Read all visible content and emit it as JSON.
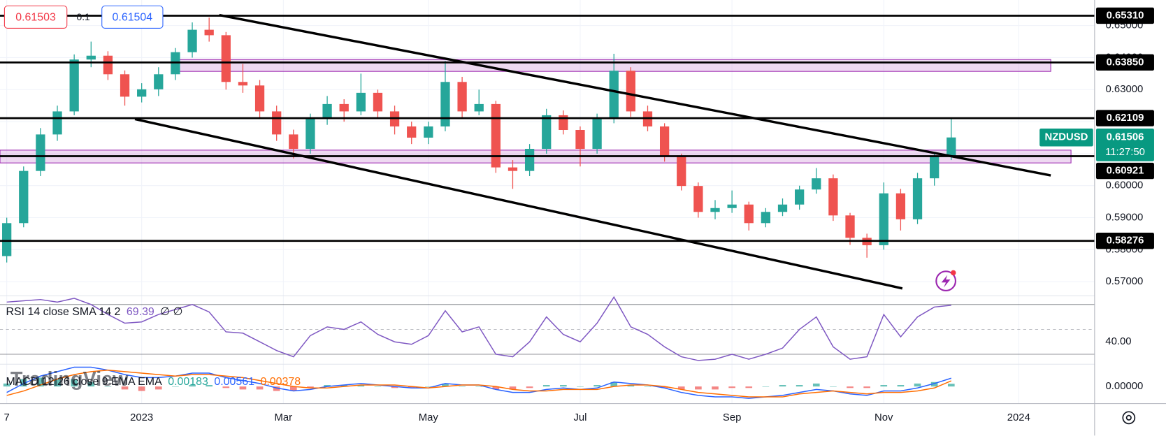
{
  "chart_data": [
    {
      "type": "candlestick",
      "symbol": "NZDUSD",
      "countdown": "11:27:50",
      "sell": 0.61503,
      "spread": 0.1,
      "buy": 0.61504,
      "watermark": "TradingView",
      "up_color": "#26a69a",
      "down_color": "#ef5350",
      "grid": true,
      "xlim": [
        -8.4,
        56.5
      ],
      "ylim": [
        0.5628,
        0.658
      ],
      "xticks": [
        {
          "value": -8,
          "label": "7"
        },
        {
          "value": 0,
          "label": "2023"
        },
        {
          "value": 8.4,
          "label": "Mar"
        },
        {
          "value": 17,
          "label": "May"
        },
        {
          "value": 26,
          "label": "Jul"
        },
        {
          "value": 35,
          "label": "Sep"
        },
        {
          "value": 44,
          "label": "Nov"
        },
        {
          "value": 52,
          "label": "2024"
        }
      ],
      "yticks": [
        {
          "value": 0.57,
          "label": "0.57000"
        },
        {
          "value": 0.58,
          "label": "0.58000"
        },
        {
          "value": 0.59,
          "label": "0.59000"
        },
        {
          "value": 0.6,
          "label": "0.60000"
        },
        {
          "value": 0.61,
          "label": "0.61000"
        },
        {
          "value": 0.62,
          "label": "0.62000"
        },
        {
          "value": 0.63,
          "label": "0.63000"
        },
        {
          "value": 0.64,
          "label": "0.64000"
        },
        {
          "value": 0.65,
          "label": "0.65000"
        }
      ],
      "x": [
        -8,
        -7,
        -6,
        -5,
        -4,
        -3,
        -2,
        -1,
        0,
        1,
        2,
        3,
        4,
        5,
        6,
        7,
        8,
        9,
        10,
        11,
        12,
        13,
        14,
        15,
        16,
        17,
        18,
        19,
        20,
        21,
        22,
        23,
        24,
        25,
        26,
        27,
        28,
        29,
        30,
        31,
        32,
        33,
        34,
        35,
        36,
        37,
        38,
        39,
        40,
        41,
        42,
        43,
        44,
        45,
        46,
        47,
        48
      ],
      "open": [
        0.578,
        0.5883,
        0.6046,
        0.616,
        0.6232,
        0.6394,
        0.6406,
        0.6348,
        0.6278,
        0.6301,
        0.6348,
        0.6417,
        0.6487,
        0.647,
        0.6324,
        0.6313,
        0.6232,
        0.616,
        0.6115,
        0.6208,
        0.6255,
        0.6232,
        0.629,
        0.6232,
        0.6185,
        0.615,
        0.6185,
        0.6324,
        0.6232,
        0.6255,
        0.6057,
        0.6046,
        0.6115,
        0.622,
        0.6174,
        0.6115,
        0.6208,
        0.6359,
        0.6232,
        0.6185,
        0.6092,
        0.5999,
        0.5918,
        0.593,
        0.5941,
        0.5883,
        0.5918,
        0.5941,
        0.5988,
        0.6023,
        0.5907,
        0.5837,
        0.5814,
        0.5976,
        0.5895,
        0.6023,
        0.6092
      ],
      "high": [
        0.59,
        0.606,
        0.618,
        0.625,
        0.641,
        0.645,
        0.642,
        0.636,
        0.632,
        0.637,
        0.643,
        0.651,
        0.6525,
        0.648,
        0.638,
        0.633,
        0.625,
        0.6175,
        0.6225,
        0.628,
        0.627,
        0.635,
        0.63,
        0.625,
        0.62,
        0.62,
        0.639,
        0.634,
        0.63,
        0.6265,
        0.608,
        0.613,
        0.624,
        0.6235,
        0.6185,
        0.6225,
        0.6412,
        0.637,
        0.625,
        0.6195,
        0.61,
        0.601,
        0.5955,
        0.5985,
        0.595,
        0.593,
        0.596,
        0.6,
        0.6055,
        0.6035,
        0.5915,
        0.585,
        0.601,
        0.599,
        0.604,
        0.61,
        0.6209
      ],
      "low": [
        0.576,
        0.587,
        0.603,
        0.614,
        0.622,
        0.637,
        0.633,
        0.625,
        0.626,
        0.628,
        0.633,
        0.64,
        0.645,
        0.63,
        0.629,
        0.621,
        0.614,
        0.6085,
        0.61,
        0.619,
        0.62,
        0.622,
        0.621,
        0.616,
        0.613,
        0.613,
        0.617,
        0.621,
        0.622,
        0.604,
        0.599,
        0.603,
        0.61,
        0.616,
        0.606,
        0.61,
        0.6195,
        0.6215,
        0.617,
        0.6075,
        0.5985,
        0.59,
        0.5895,
        0.5915,
        0.586,
        0.587,
        0.5905,
        0.5925,
        0.5975,
        0.589,
        0.5815,
        0.5775,
        0.58,
        0.586,
        0.588,
        0.6,
        0.608
      ],
      "close": [
        0.5883,
        0.6046,
        0.616,
        0.6232,
        0.6394,
        0.6406,
        0.6348,
        0.6278,
        0.6301,
        0.6348,
        0.6417,
        0.6487,
        0.647,
        0.6324,
        0.6313,
        0.6232,
        0.616,
        0.6115,
        0.6208,
        0.6255,
        0.6232,
        0.629,
        0.6232,
        0.6185,
        0.615,
        0.6185,
        0.6324,
        0.6232,
        0.6255,
        0.6057,
        0.6046,
        0.6115,
        0.622,
        0.6174,
        0.6115,
        0.6208,
        0.6359,
        0.6232,
        0.6185,
        0.6092,
        0.5999,
        0.5918,
        0.593,
        0.5941,
        0.5883,
        0.5918,
        0.5941,
        0.5988,
        0.6023,
        0.5907,
        0.5837,
        0.5814,
        0.5976,
        0.5895,
        0.6023,
        0.6092,
        0.61506
      ],
      "last_color": "#089981",
      "levels": [
        {
          "value": 0.6531,
          "label": "0.65310"
        },
        {
          "value": 0.6385,
          "label": "0.63850"
        },
        {
          "value": 0.62109,
          "label": "0.62109"
        },
        {
          "value": 0.60921,
          "label": "0.60921"
        },
        {
          "value": 0.58276,
          "label": "0.58276"
        }
      ],
      "zones": [
        {
          "x": [
            2.1,
            53.9
          ],
          "y": [
            0.6357,
            0.6394
          ]
        },
        {
          "x": [
            -8.4,
            55.1
          ],
          "y": [
            0.6071,
            0.6111
          ]
        }
      ],
      "trendlines": [
        {
          "x": [
            4.6,
            53.9
          ],
          "y": [
            0.6533,
            0.6032
          ]
        },
        {
          "x": [
            -0.4,
            45.1
          ],
          "y": [
            0.6208,
            0.5679
          ]
        }
      ]
    },
    {
      "type": "line",
      "title": "RSI 14 close SMA 14 2",
      "na_values": "∅ ∅",
      "color": "#7e57c2",
      "ylim": [
        22,
        77
      ],
      "yticks": [
        {
          "value": 40,
          "label": "40.00"
        }
      ],
      "bands": [
        70,
        50,
        30
      ],
      "values": [
        72,
        73,
        74,
        72,
        75,
        70,
        62,
        55,
        56,
        62,
        66,
        70,
        64,
        48,
        47,
        40,
        33,
        28,
        45,
        52,
        50,
        56,
        46,
        40,
        38,
        45,
        65,
        48,
        52,
        30,
        28,
        40,
        60,
        46,
        40,
        55,
        76,
        52,
        46,
        36,
        28,
        25,
        26,
        30,
        26,
        30,
        35,
        50,
        60,
        36,
        26,
        28,
        62,
        44,
        60,
        68,
        69.39
      ]
    },
    {
      "type": "macd",
      "title": "MACD 12 26 close 9 EMA EMA",
      "ylim": [
        -0.0115,
        0.015
      ],
      "yticks": [
        {
          "value": 0,
          "label": "0.00000"
        }
      ],
      "histogram": {
        "up_color": "#26a69a",
        "down_color": "#ef5350",
        "values": [
          0.002,
          0.005,
          0.006,
          0.005,
          0.005,
          0.003,
          0,
          -0.002,
          -0.003,
          -0.002,
          0,
          0.001,
          0.001,
          -0.001,
          -0.002,
          -0.002,
          -0.003,
          -0.003,
          -0.001,
          0.001,
          0.001,
          0.001,
          0,
          -0.001,
          -0.001,
          0,
          0.002,
          0,
          0,
          -0.002,
          -0.002,
          -0.001,
          0.001,
          0.001,
          0,
          0.001,
          0.003,
          0.001,
          0,
          -0.001,
          -0.002,
          -0.002,
          -0.002,
          -0.001,
          -0.001,
          0,
          0.001,
          0.001,
          0.002,
          0,
          -0.001,
          -0.001,
          0.001,
          0.001,
          0.002,
          0.003,
          0.00183
        ]
      },
      "macd": {
        "color": "#2962ff",
        "values": [
          -0.004,
          0.002,
          0.007,
          0.01,
          0.013,
          0.013,
          0.011,
          0.008,
          0.006,
          0.006,
          0.007,
          0.009,
          0.009,
          0.006,
          0.004,
          0.002,
          -0.001,
          -0.003,
          -0.002,
          0,
          0.001,
          0.002,
          0.001,
          0,
          -0.001,
          -0.001,
          0.002,
          0.001,
          0.001,
          -0.002,
          -0.004,
          -0.004,
          -0.002,
          -0.001,
          -0.002,
          -0.001,
          0.003,
          0.002,
          0.001,
          -0.001,
          -0.004,
          -0.006,
          -0.007,
          -0.007,
          -0.008,
          -0.007,
          -0.006,
          -0.004,
          -0.002,
          -0.003,
          -0.005,
          -0.006,
          -0.003,
          -0.003,
          -0.001,
          0.002,
          0.00561
        ]
      },
      "signal": {
        "color": "#ff6d00",
        "values": [
          -0.006,
          -0.003,
          0.001,
          0.005,
          0.008,
          0.01,
          0.011,
          0.01,
          0.009,
          0.008,
          0.007,
          0.008,
          0.008,
          0.007,
          0.006,
          0.004,
          0.002,
          0,
          -0.001,
          -0.001,
          0,
          0.001,
          0.001,
          0.001,
          0,
          -0.001,
          0,
          0.001,
          0.001,
          0,
          -0.002,
          -0.003,
          -0.003,
          -0.002,
          -0.002,
          -0.002,
          0,
          0.001,
          0.001,
          0,
          -0.002,
          -0.004,
          -0.005,
          -0.006,
          -0.007,
          -0.007,
          -0.007,
          -0.005,
          -0.004,
          -0.003,
          -0.004,
          -0.005,
          -0.004,
          -0.004,
          -0.003,
          -0.001,
          0.00378
        ]
      }
    }
  ]
}
